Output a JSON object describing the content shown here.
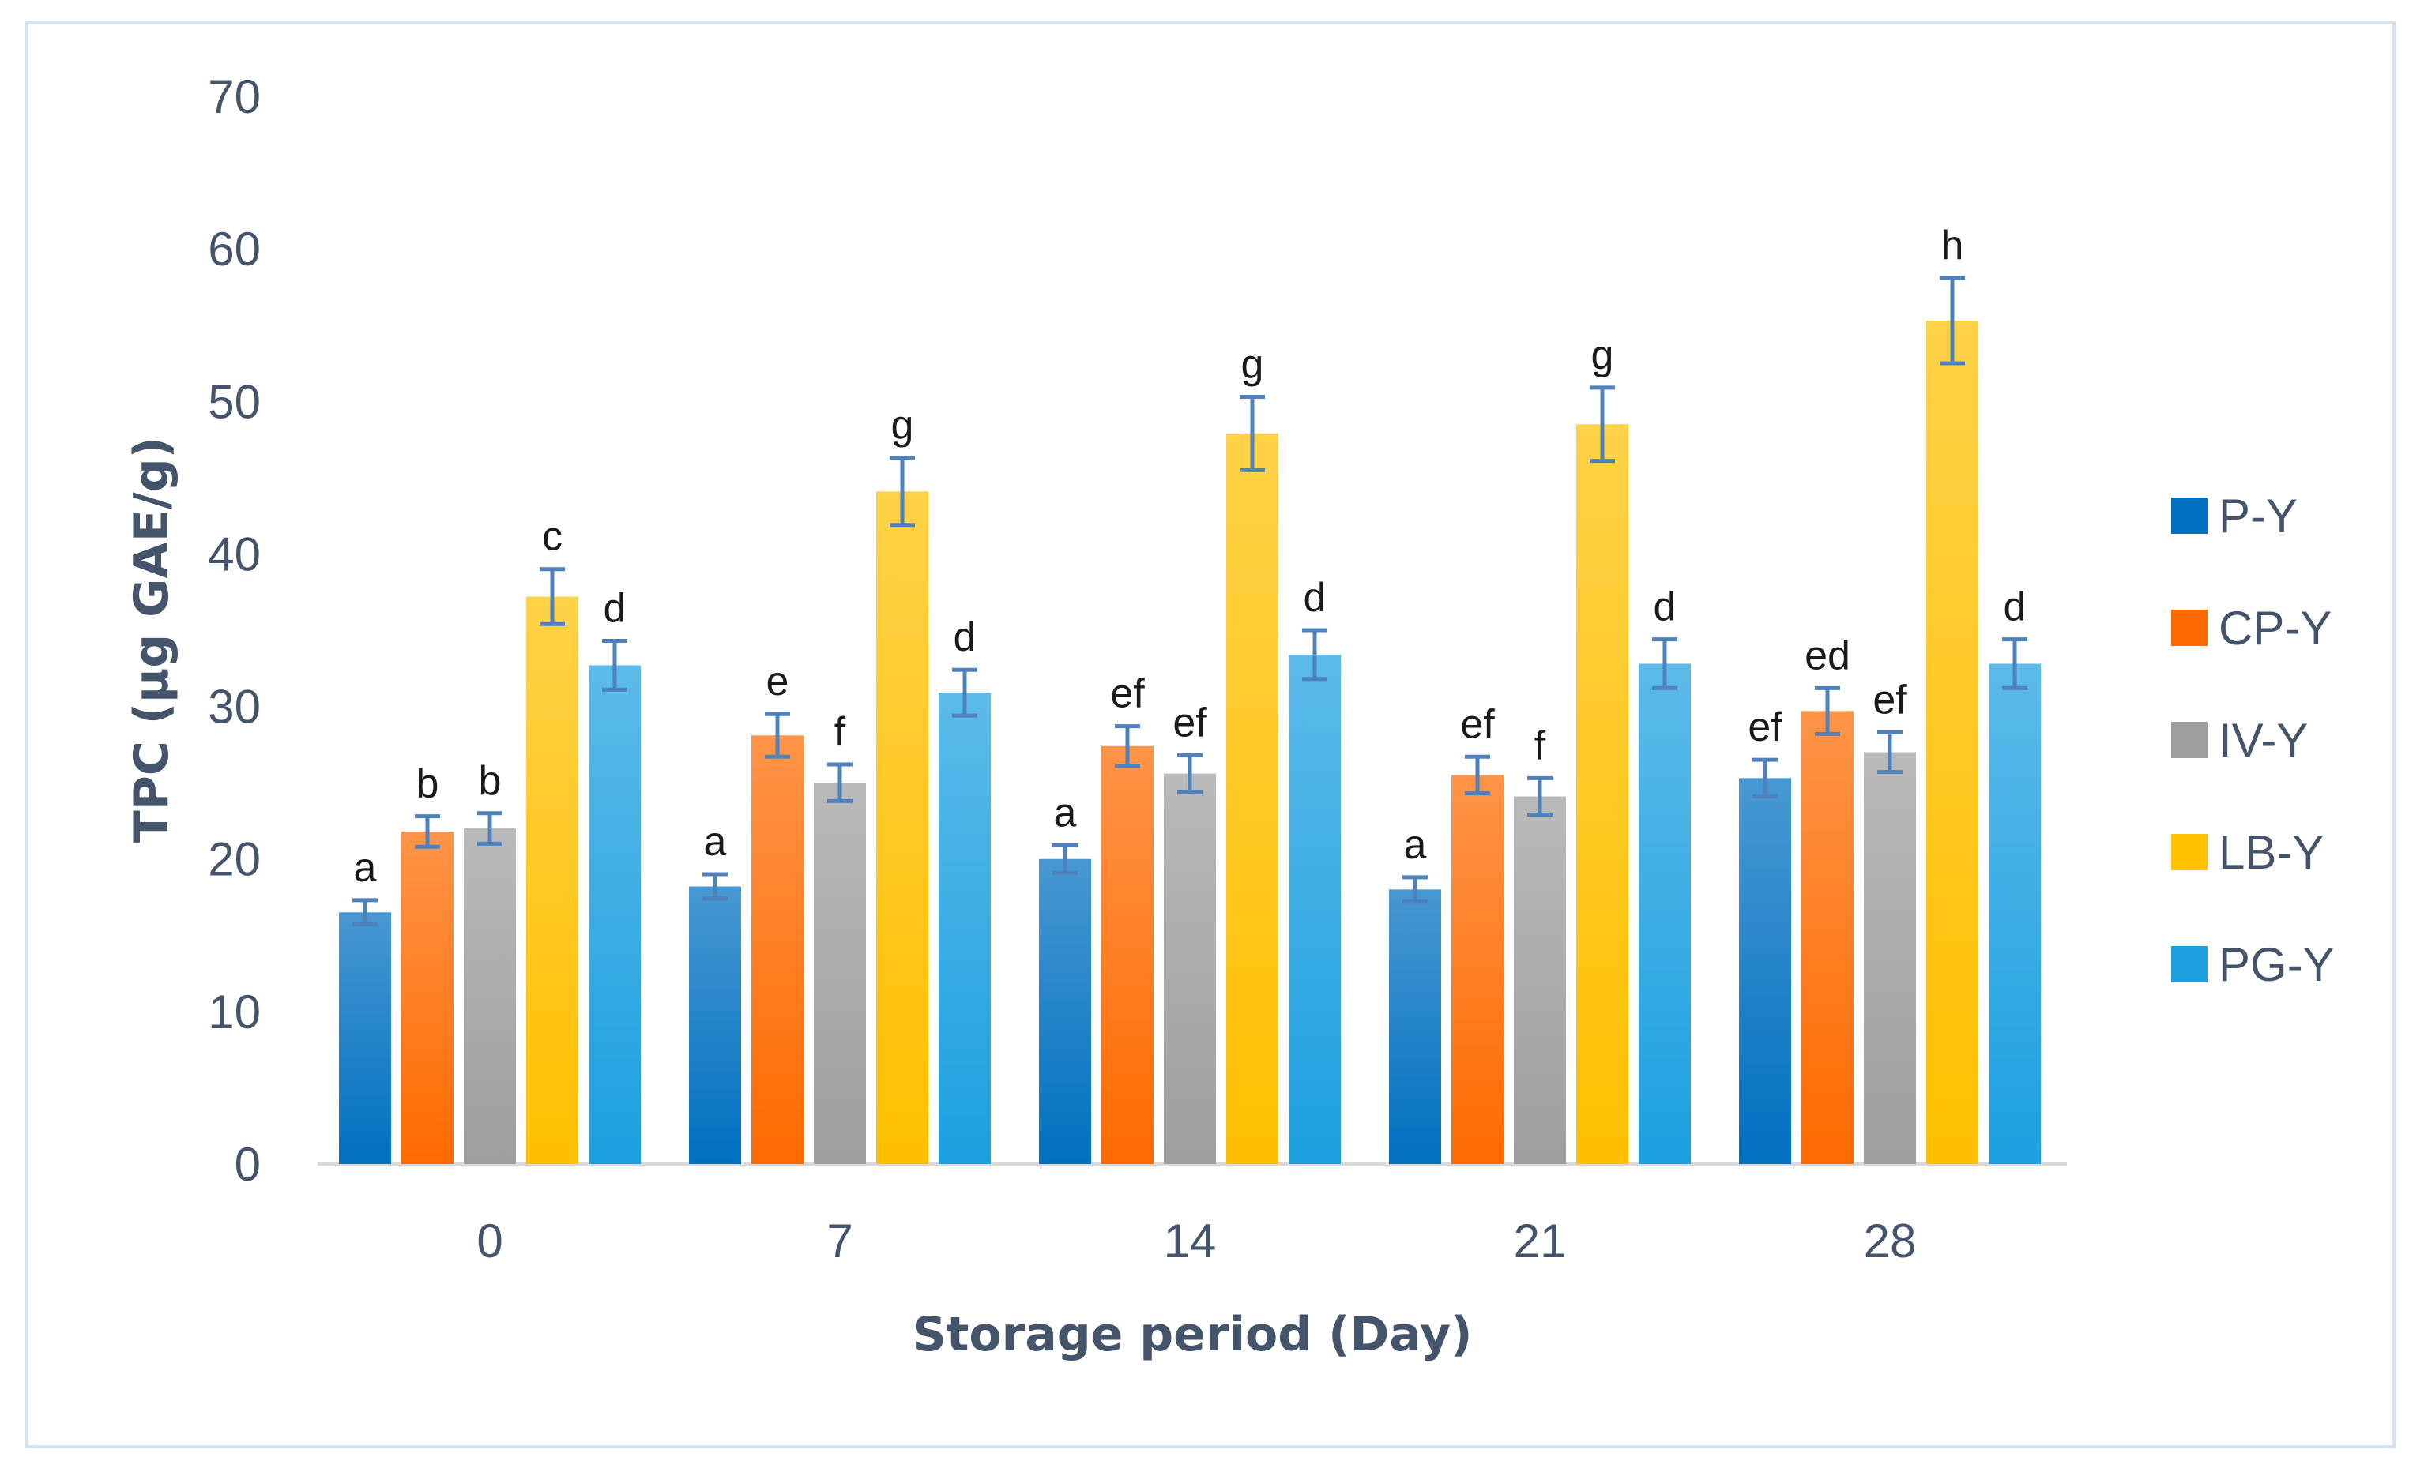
{
  "chart_data": {
    "type": "bar",
    "title": "",
    "xlabel": "Storage period (Day)",
    "ylabel": "TPC (µg GAE/g)",
    "ylim": [
      0,
      70
    ],
    "yticks": [
      0,
      10,
      20,
      30,
      40,
      50,
      60,
      70
    ],
    "categories": [
      "0",
      "7",
      "14",
      "21",
      "28"
    ],
    "series": [
      {
        "name": "P-Y",
        "color": "#0070c0",
        "values": [
          16.5,
          18.2,
          20.0,
          18.0,
          25.3
        ],
        "errors": [
          0.8,
          0.8,
          0.9,
          0.8,
          1.2
        ],
        "letters": [
          "a",
          "a",
          "a",
          "a",
          "ef"
        ]
      },
      {
        "name": "CP-Y",
        "color": "#ff6a00",
        "values": [
          21.8,
          28.1,
          27.4,
          25.5,
          29.7
        ],
        "errors": [
          1.0,
          1.4,
          1.3,
          1.2,
          1.5
        ],
        "letters": [
          "b",
          "e",
          "ef",
          "ef",
          "ed"
        ]
      },
      {
        "name": "IV-Y",
        "color": "#9e9e9e",
        "values": [
          22.0,
          25.0,
          25.6,
          24.1,
          27.0
        ],
        "errors": [
          1.0,
          1.2,
          1.2,
          1.2,
          1.3
        ],
        "letters": [
          "b",
          "f",
          "ef",
          "f",
          "ef"
        ]
      },
      {
        "name": "LB-Y",
        "color": "#ffc000",
        "values": [
          37.2,
          44.1,
          47.9,
          48.5,
          55.3
        ],
        "errors": [
          1.8,
          2.2,
          2.4,
          2.4,
          2.8
        ],
        "letters": [
          "c",
          "g",
          "g",
          "g",
          "h"
        ]
      },
      {
        "name": "PG-Y",
        "color": "#1ca0e0",
        "values": [
          32.7,
          30.9,
          33.4,
          32.8,
          32.8
        ],
        "errors": [
          1.6,
          1.5,
          1.6,
          1.6,
          1.6
        ],
        "letters": [
          "d",
          "d",
          "d",
          "d",
          "d"
        ]
      }
    ],
    "error_bar_color": "#4f81bd",
    "legend_position": "right",
    "grid": false
  }
}
